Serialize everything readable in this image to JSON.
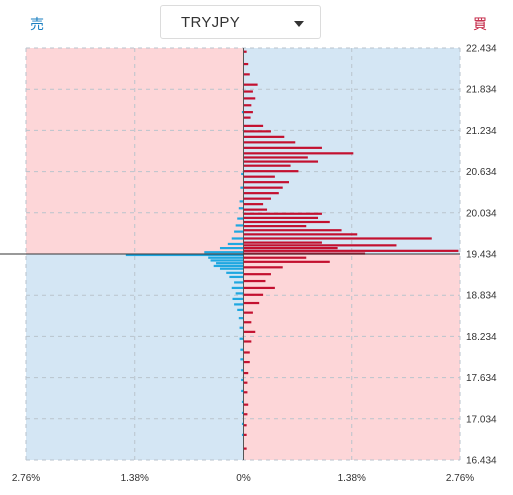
{
  "header": {
    "sell_label": "売",
    "buy_label": "買",
    "pair_selector": {
      "selected": "TRYJPY",
      "icon": "caret-down-icon"
    }
  },
  "colors": {
    "sell_text": "#1a7fc1",
    "buy_text": "#c01a3b",
    "sell_bar": "#1ea7e0",
    "buy_bar": "#c3102f",
    "pink_bg": "#fdd6d8",
    "blue_bg": "#d4e6f4"
  },
  "chart_data": {
    "type": "bar",
    "orientation": "horizontal",
    "current_price": 19.434,
    "y_ticks": [
      "22.434",
      "21.834",
      "21.234",
      "20.634",
      "20.034",
      "19.434",
      "18.834",
      "18.234",
      "17.634",
      "17.034",
      "16.434"
    ],
    "x_ticks": [
      "2.76%",
      "1.38%",
      "0%",
      "1.38%",
      "2.76%"
    ],
    "ylim": [
      16.434,
      22.434
    ],
    "xlim": [
      -2.76,
      2.76
    ],
    "grid": true,
    "series": [
      {
        "name": "買",
        "side": "buy",
        "points": [
          {
            "price": 22.38,
            "value": 0.04
          },
          {
            "price": 22.2,
            "value": 0.06
          },
          {
            "price": 22.05,
            "value": 0.08
          },
          {
            "price": 21.9,
            "value": 0.18
          },
          {
            "price": 21.8,
            "value": 0.12
          },
          {
            "price": 21.7,
            "value": 0.15
          },
          {
            "price": 21.6,
            "value": 0.1
          },
          {
            "price": 21.5,
            "value": 0.12
          },
          {
            "price": 21.42,
            "value": 0.09
          },
          {
            "price": 21.3,
            "value": 0.25
          },
          {
            "price": 21.22,
            "value": 0.35
          },
          {
            "price": 21.14,
            "value": 0.52
          },
          {
            "price": 21.06,
            "value": 0.66
          },
          {
            "price": 20.98,
            "value": 1.0
          },
          {
            "price": 20.9,
            "value": 1.4
          },
          {
            "price": 20.84,
            "value": 0.82
          },
          {
            "price": 20.78,
            "value": 0.95
          },
          {
            "price": 20.72,
            "value": 0.6
          },
          {
            "price": 20.64,
            "value": 0.7
          },
          {
            "price": 20.56,
            "value": 0.4
          },
          {
            "price": 20.48,
            "value": 0.58
          },
          {
            "price": 20.4,
            "value": 0.5
          },
          {
            "price": 20.32,
            "value": 0.45
          },
          {
            "price": 20.24,
            "value": 0.35
          },
          {
            "price": 20.16,
            "value": 0.25
          },
          {
            "price": 20.08,
            "value": 0.3
          },
          {
            "price": 20.02,
            "value": 1.0
          },
          {
            "price": 19.96,
            "value": 0.95
          },
          {
            "price": 19.9,
            "value": 1.1
          },
          {
            "price": 19.84,
            "value": 0.8
          },
          {
            "price": 19.78,
            "value": 1.25
          },
          {
            "price": 19.72,
            "value": 1.45
          },
          {
            "price": 19.66,
            "value": 2.4
          },
          {
            "price": 19.6,
            "value": 1.0
          },
          {
            "price": 19.56,
            "value": 1.95
          },
          {
            "price": 19.52,
            "value": 1.2
          },
          {
            "price": 19.48,
            "value": 2.74
          },
          {
            "price": 19.44,
            "value": 1.55
          },
          {
            "price": 19.38,
            "value": 0.8
          },
          {
            "price": 19.32,
            "value": 1.1
          },
          {
            "price": 19.24,
            "value": 0.5
          },
          {
            "price": 19.14,
            "value": 0.35
          },
          {
            "price": 19.04,
            "value": 0.28
          },
          {
            "price": 18.94,
            "value": 0.4
          },
          {
            "price": 18.84,
            "value": 0.25
          },
          {
            "price": 18.72,
            "value": 0.2
          },
          {
            "price": 18.58,
            "value": 0.12
          },
          {
            "price": 18.44,
            "value": 0.1
          },
          {
            "price": 18.3,
            "value": 0.15
          },
          {
            "price": 18.16,
            "value": 0.1
          },
          {
            "price": 18.0,
            "value": 0.08
          },
          {
            "price": 17.86,
            "value": 0.08
          },
          {
            "price": 17.7,
            "value": 0.06
          },
          {
            "price": 17.56,
            "value": 0.05
          },
          {
            "price": 17.42,
            "value": 0.05
          },
          {
            "price": 17.24,
            "value": 0.06
          },
          {
            "price": 17.1,
            "value": 0.05
          },
          {
            "price": 16.94,
            "value": 0.04
          },
          {
            "price": 16.8,
            "value": 0.04
          },
          {
            "price": 16.6,
            "value": 0.04
          }
        ]
      },
      {
        "name": "売",
        "side": "sell",
        "points": [
          {
            "price": 21.5,
            "value": 0.02
          },
          {
            "price": 20.6,
            "value": 0.03
          },
          {
            "price": 20.4,
            "value": 0.04
          },
          {
            "price": 20.2,
            "value": 0.05
          },
          {
            "price": 20.1,
            "value": 0.06
          },
          {
            "price": 19.95,
            "value": 0.08
          },
          {
            "price": 19.85,
            "value": 0.1
          },
          {
            "price": 19.76,
            "value": 0.12
          },
          {
            "price": 19.66,
            "value": 0.15
          },
          {
            "price": 19.58,
            "value": 0.2
          },
          {
            "price": 19.52,
            "value": 0.3
          },
          {
            "price": 19.46,
            "value": 0.5
          },
          {
            "price": 19.42,
            "value": 1.5
          },
          {
            "price": 19.38,
            "value": 0.45
          },
          {
            "price": 19.34,
            "value": 0.42
          },
          {
            "price": 19.3,
            "value": 0.35
          },
          {
            "price": 19.26,
            "value": 0.38
          },
          {
            "price": 19.22,
            "value": 0.3
          },
          {
            "price": 19.16,
            "value": 0.22
          },
          {
            "price": 19.1,
            "value": 0.18
          },
          {
            "price": 19.02,
            "value": 0.12
          },
          {
            "price": 18.94,
            "value": 0.15
          },
          {
            "price": 18.86,
            "value": 0.1
          },
          {
            "price": 18.78,
            "value": 0.14
          },
          {
            "price": 18.7,
            "value": 0.12
          },
          {
            "price": 18.62,
            "value": 0.08
          },
          {
            "price": 18.5,
            "value": 0.06
          },
          {
            "price": 18.36,
            "value": 0.05
          },
          {
            "price": 18.2,
            "value": 0.05
          },
          {
            "price": 18.04,
            "value": 0.04
          },
          {
            "price": 17.9,
            "value": 0.04
          },
          {
            "price": 17.74,
            "value": 0.03
          },
          {
            "price": 17.6,
            "value": 0.03
          },
          {
            "price": 17.44,
            "value": 0.03
          },
          {
            "price": 17.28,
            "value": 0.02
          },
          {
            "price": 17.12,
            "value": 0.02
          },
          {
            "price": 16.96,
            "value": 0.02
          },
          {
            "price": 16.8,
            "value": 0.02
          }
        ]
      }
    ]
  }
}
